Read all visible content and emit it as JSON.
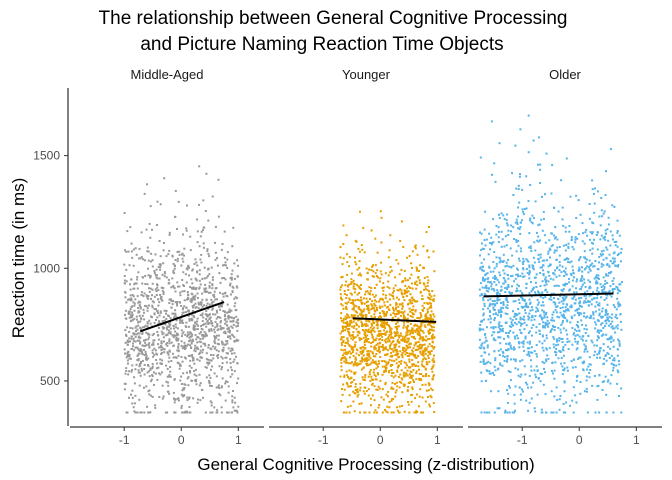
{
  "chart_data": {
    "type": "scatter",
    "title_lines": [
      "The relationship between General Cognitive Processing",
      "and Picture Naming Reaction Time Objects"
    ],
    "xlabel": "General Cognitive Processing (z-distribution)",
    "ylabel": "Reaction time (in ms)",
    "xlim": [
      -1.95,
      1.45
    ],
    "ylim": [
      300,
      1800
    ],
    "xticks": [
      -1,
      0,
      1
    ],
    "yticks": [
      500,
      1000,
      1500
    ],
    "grid": false,
    "legend": "none",
    "panels": [
      {
        "name": "Middle-Aged",
        "color": "#999999",
        "x_range": [
          -1.0,
          1.0
        ],
        "y_center": 730,
        "y_spread": 190,
        "n_points": 1400,
        "fit_line": {
          "x": [
            -0.72,
            0.75
          ],
          "y": [
            720,
            850
          ]
        }
      },
      {
        "name": "Younger",
        "color": "#E69F00",
        "x_range": [
          -0.7,
          0.95
        ],
        "y_center": 690,
        "y_spread": 150,
        "n_points": 1500,
        "fit_line": {
          "x": [
            -0.48,
            0.98
          ],
          "y": [
            778,
            762
          ]
        }
      },
      {
        "name": "Older",
        "color": "#56B4E9",
        "x_range": [
          -1.75,
          0.75
        ],
        "y_center": 820,
        "y_spread": 220,
        "n_points": 1600,
        "fit_line": {
          "x": [
            -1.68,
            0.6
          ],
          "y": [
            875,
            888
          ]
        }
      }
    ]
  }
}
